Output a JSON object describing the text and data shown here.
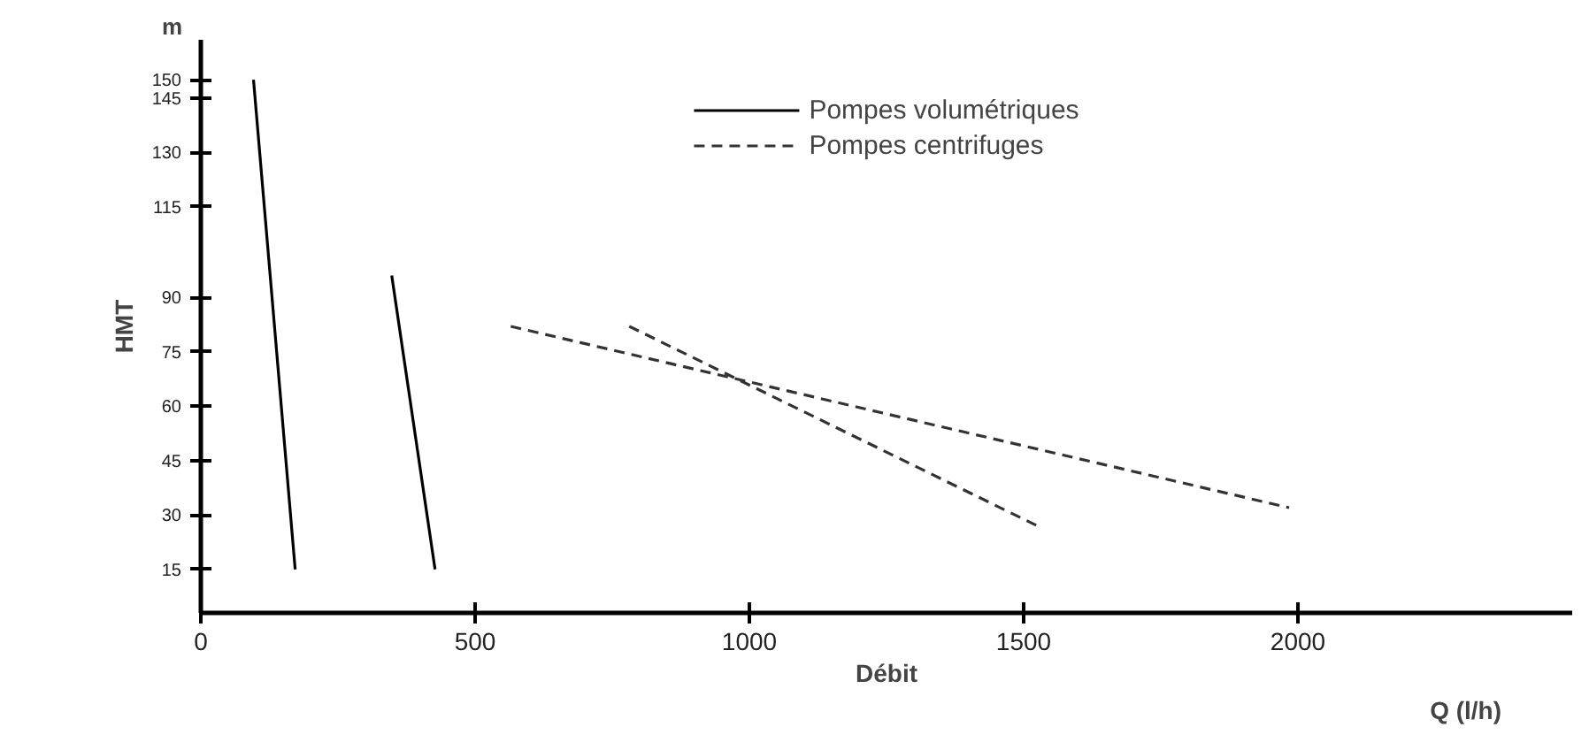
{
  "chart_data": {
    "type": "line",
    "xlabel": "Débit",
    "ylabel": "HMT",
    "annotations": [
      "m",
      "Q (l/h)"
    ],
    "xlim": [
      0,
      2500
    ],
    "ylim": [
      3,
      161
    ],
    "xticks": [
      0,
      500,
      1000,
      1500,
      2000
    ],
    "yticks": [
      15,
      30,
      45,
      60,
      75,
      90,
      115,
      130,
      145,
      150
    ],
    "grid": false,
    "legend": "top",
    "marker": "none",
    "series": [
      {
        "name": "Pompes volumétriques",
        "color": "#000000",
        "line_style": "solid",
        "x": [
          96,
          172
        ],
        "values": [
          150,
          15
        ]
      },
      {
        "color": "#000000",
        "line_style": "solid",
        "x": [
          348,
          427
        ],
        "values": [
          96,
          15
        ]
      },
      {
        "name": "Pompes centrifuges",
        "color": "#333333",
        "line_style": "dashed",
        "x": [
          565,
          1984
        ],
        "values": [
          82,
          32
        ]
      },
      {
        "color": "#333333",
        "line_style": "dashed",
        "x": [
          781,
          1525
        ],
        "values": [
          82,
          27
        ]
      }
    ]
  }
}
